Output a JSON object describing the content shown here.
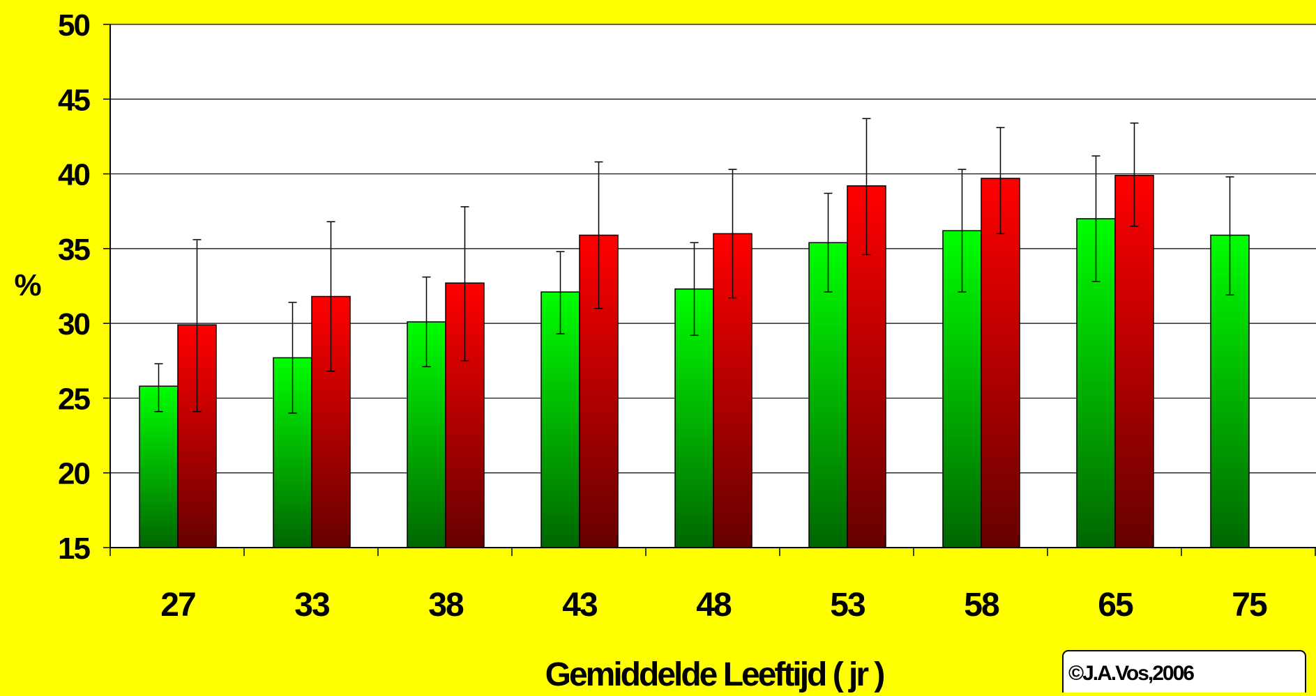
{
  "chart_data": {
    "type": "bar",
    "title": "",
    "xlabel": "Gemiddelde Leeftijd ( jr )",
    "ylabel": "%",
    "ylim": [
      15,
      50
    ],
    "yticks": [
      15,
      20,
      25,
      30,
      35,
      40,
      45,
      50
    ],
    "grid": true,
    "categories": [
      "27",
      "33",
      "38",
      "43",
      "48",
      "53",
      "58",
      "65",
      "75"
    ],
    "series": [
      {
        "color": "#00FF00",
        "color_dark": "#006600",
        "values": [
          25.8,
          27.7,
          30.1,
          32.1,
          32.3,
          35.4,
          36.2,
          37.0,
          35.9
        ],
        "error_low": [
          24.1,
          24.0,
          27.1,
          29.3,
          29.2,
          32.1,
          32.1,
          32.8,
          31.9
        ],
        "error_high": [
          27.3,
          31.4,
          33.1,
          34.8,
          35.4,
          38.7,
          40.3,
          41.2,
          39.8
        ]
      },
      {
        "color": "#FF0000",
        "color_dark": "#660000",
        "values": [
          29.9,
          31.8,
          32.7,
          35.9,
          36.0,
          39.2,
          39.7,
          39.9,
          null
        ],
        "error_low": [
          24.1,
          26.8,
          27.5,
          31.0,
          31.7,
          34.6,
          36.0,
          36.5,
          null
        ],
        "error_high": [
          35.6,
          36.8,
          37.8,
          40.8,
          40.3,
          43.7,
          43.1,
          43.4,
          null
        ]
      }
    ],
    "annotation": "©J.A.Vos,2006"
  }
}
